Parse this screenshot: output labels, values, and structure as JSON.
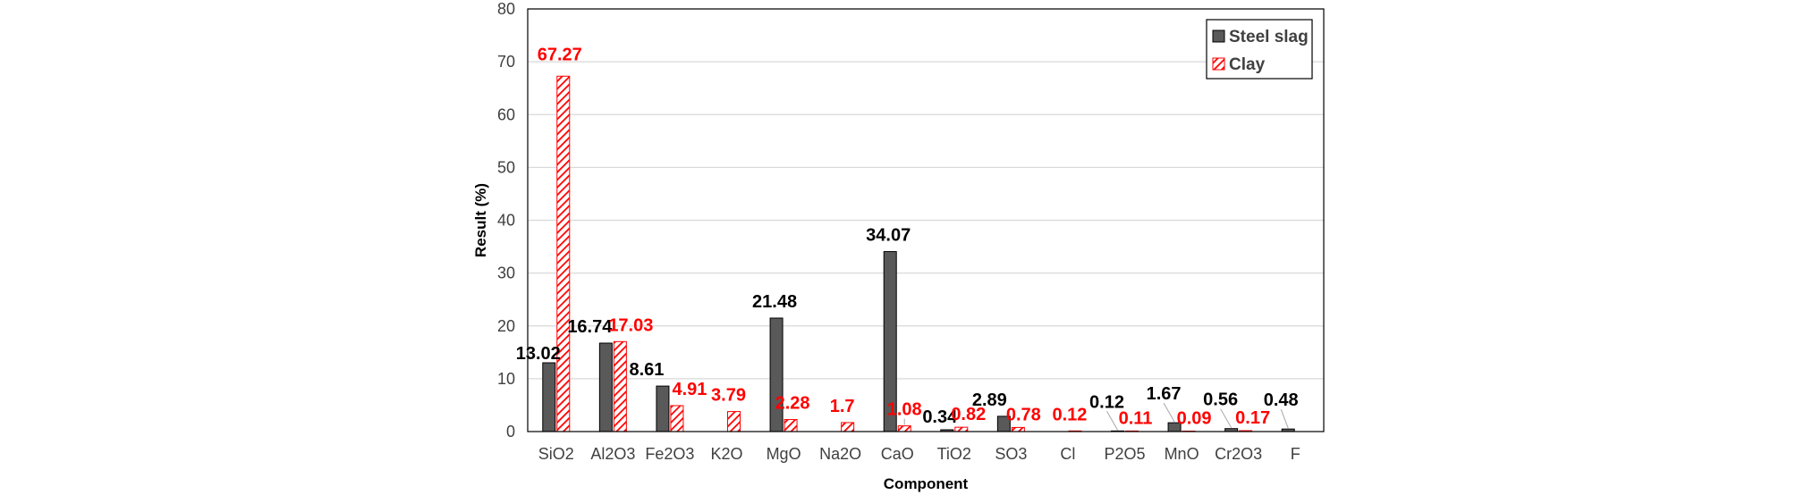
{
  "chart_data": {
    "type": "bar",
    "title": "",
    "xlabel": "Component",
    "ylabel": "Result (%)",
    "ylim": [
      0,
      80
    ],
    "yticks": [
      0,
      10,
      20,
      30,
      40,
      50,
      60,
      70,
      80
    ],
    "grid": true,
    "legend_position": "top-right",
    "categories": [
      "SiO2",
      "Al2O3",
      "Fe2O3",
      "K2O",
      "MgO",
      "Na2O",
      "CaO",
      "TiO2",
      "SO3",
      "Cl",
      "P2O5",
      "MnO",
      "Cr2O3",
      "F"
    ],
    "series": [
      {
        "name": "Steel slag",
        "color": "#595959",
        "label_color": "#000000",
        "values": [
          13.02,
          16.74,
          8.61,
          null,
          21.48,
          null,
          34.07,
          0.34,
          2.89,
          null,
          0.12,
          1.67,
          0.56,
          0.48
        ],
        "labels": [
          "13.02",
          "16.74",
          "8.61",
          null,
          "21.48",
          null,
          "34.07",
          "0.34",
          "2.89",
          null,
          "0.12",
          "1.67",
          "0.56",
          "0.48"
        ]
      },
      {
        "name": "Clay",
        "color": "#ff0000",
        "label_color": "#ff0000",
        "values": [
          67.27,
          17.03,
          4.91,
          3.79,
          2.28,
          1.7,
          1.08,
          0.82,
          0.78,
          0.12,
          0.11,
          0.09,
          0.17,
          null
        ],
        "labels": [
          "67.27",
          "17.03",
          "4.91",
          "3.79",
          "2.28",
          "1.7",
          "1.08",
          "0.82",
          "0.78",
          "0.12",
          "0.11",
          "0.09",
          "0.17",
          null
        ]
      }
    ]
  }
}
